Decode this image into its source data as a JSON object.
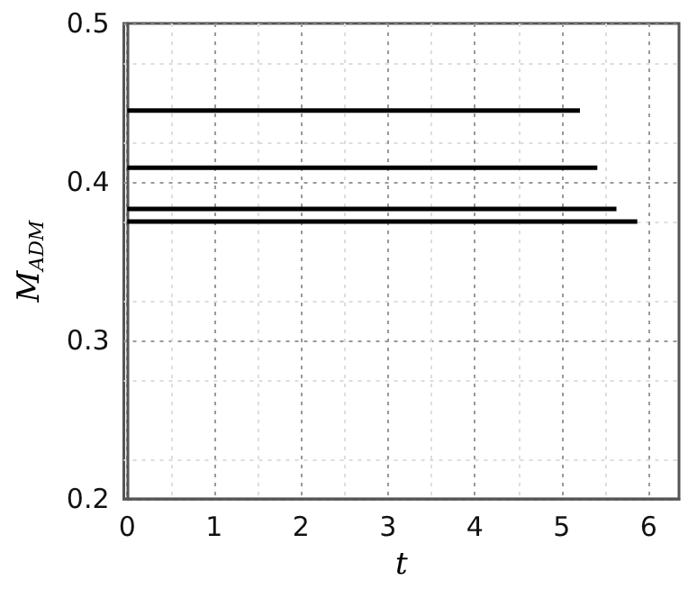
{
  "chart_data": {
    "type": "line",
    "xlabel": "t",
    "ylabel": "M$_{ADM}$",
    "xlim": [
      -0.04,
      6.35
    ],
    "ylim": [
      0.2,
      0.5
    ],
    "xticks": [
      0,
      1,
      2,
      3,
      4,
      5,
      6
    ],
    "yticks": [
      0.2,
      0.3,
      0.4,
      0.5
    ],
    "grid": true,
    "marker": "none",
    "line_style": "solid",
    "series": [
      {
        "color": "#000000",
        "x": [
          0,
          5.21
        ],
        "values": [
          0.445,
          0.445
        ]
      },
      {
        "color": "#000000",
        "x": [
          0,
          5.41
        ],
        "values": [
          0.409,
          0.409
        ]
      },
      {
        "color": "#000000",
        "x": [
          0,
          5.63
        ],
        "values": [
          0.383,
          0.383
        ]
      },
      {
        "color": "#000000",
        "x": [
          0,
          5.87
        ],
        "values": [
          0.375,
          0.375
        ]
      }
    ]
  }
}
